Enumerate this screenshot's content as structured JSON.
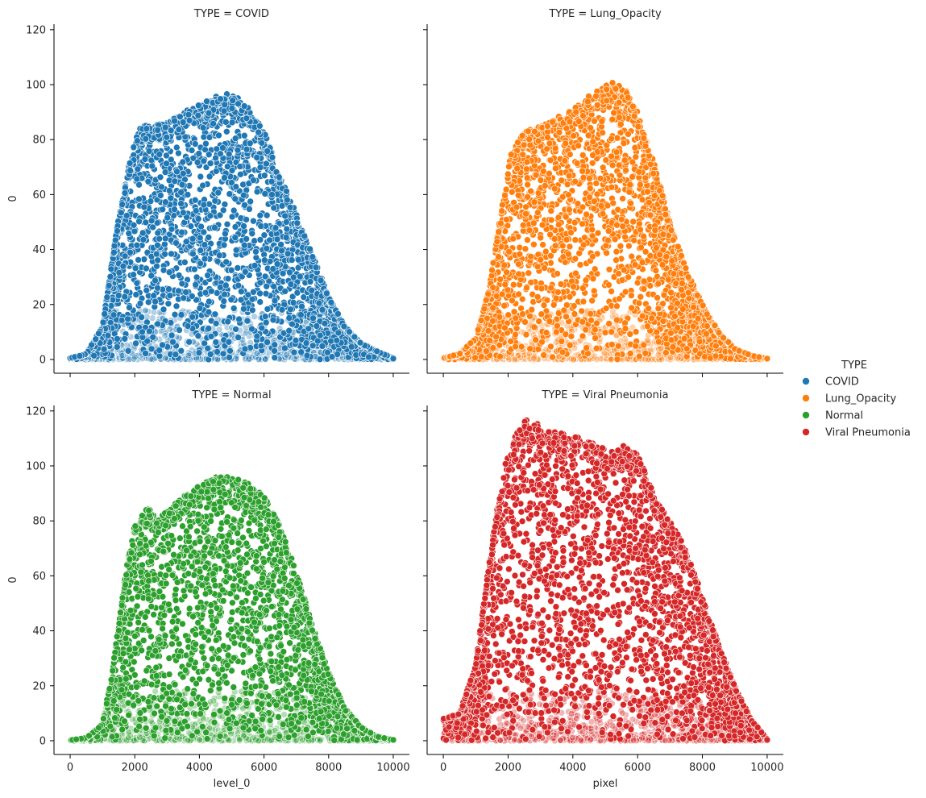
{
  "chart_data": {
    "type": "scatter",
    "hue_variable": "TYPE",
    "legend": {
      "title": "TYPE",
      "placement": "right",
      "entries": [
        {
          "label": "COVID",
          "color": "#1f77b4"
        },
        {
          "label": "Lung_Opacity",
          "color": "#ff7f0e"
        },
        {
          "label": "Normal",
          "color": "#2ca02c"
        },
        {
          "label": "Viral Pneumonia",
          "color": "#d62728"
        }
      ]
    },
    "shared_axes": {
      "xlim": [
        -500,
        10500
      ],
      "ylim": [
        -5,
        122
      ],
      "xticks": [
        0,
        2000,
        4000,
        6000,
        8000,
        10000
      ],
      "yticks": [
        0,
        20,
        40,
        60,
        80,
        100,
        120
      ],
      "grid": false
    },
    "xlabels": [
      "level_0",
      "pixel"
    ],
    "ylabels": [
      "0",
      "0"
    ],
    "panels": [
      {
        "title": "TYPE = COVID",
        "color": "#1f77b4",
        "envelope": {
          "x": [
            0,
            500,
            1000,
            1400,
            1800,
            2100,
            2500,
            3000,
            3500,
            4000,
            4500,
            5000,
            5500,
            6000,
            6500,
            7000,
            7500,
            8000,
            8500,
            9000,
            9500,
            10000
          ],
          "y": [
            0.5,
            2,
            12,
            45,
            70,
            84,
            86,
            86,
            90,
            93,
            96,
            97,
            92,
            83,
            67,
            53,
            38,
            23,
            12,
            6,
            3,
            0.5
          ]
        },
        "endpoint": {
          "x": 10000,
          "y": 0.3
        }
      },
      {
        "title": "TYPE = Lung_Opacity",
        "color": "#ff7f0e",
        "envelope": {
          "x": [
            0,
            500,
            1000,
            1400,
            1800,
            2100,
            2500,
            3000,
            3500,
            4000,
            4500,
            5000,
            5300,
            5600,
            6000,
            6500,
            7000,
            7500,
            8000,
            8500,
            9000,
            9500,
            10000
          ],
          "y": [
            0.5,
            2,
            8,
            25,
            55,
            77,
            83,
            85,
            88,
            91,
            96,
            100,
            101,
            99,
            90,
            72,
            50,
            33,
            20,
            10,
            4,
            1.5,
            0.3
          ]
        },
        "endpoint": {
          "x": 10000,
          "y": 0.3
        }
      },
      {
        "title": "TYPE = Normal",
        "color": "#2ca02c",
        "envelope": {
          "x": [
            0,
            500,
            1000,
            1300,
            1700,
            2000,
            2400,
            2700,
            3000,
            3500,
            4000,
            4500,
            5000,
            5500,
            6000,
            6500,
            7000,
            7500,
            8000,
            8500,
            9000,
            9500,
            10000
          ],
          "y": [
            0.2,
            1,
            6,
            25,
            60,
            79,
            85,
            81,
            84,
            89,
            93,
            96,
            96,
            94,
            89,
            78,
            62,
            42,
            25,
            12,
            5,
            1.5,
            0.3
          ]
        },
        "endpoint": {
          "x": 10000,
          "y": 0.3
        }
      },
      {
        "title": "TYPE = Viral Pneumonia",
        "color": "#d62728",
        "envelope": {
          "x": [
            0,
            500,
            1000,
            1300,
            1600,
            1900,
            2200,
            2600,
            3000,
            3500,
            4000,
            4500,
            5000,
            5500,
            6000,
            6300,
            6600,
            7000,
            7400,
            7800,
            8200,
            8600,
            9000,
            9500,
            10000
          ],
          "y": [
            8,
            10,
            28,
            55,
            80,
            100,
            113,
            117,
            116,
            113,
            111,
            109,
            106,
            108,
            105,
            96,
            87,
            80,
            72,
            60,
            45,
            32,
            20,
            8,
            0.5
          ]
        },
        "endpoint": {
          "x": 10000,
          "y": 0.3
        }
      }
    ]
  }
}
